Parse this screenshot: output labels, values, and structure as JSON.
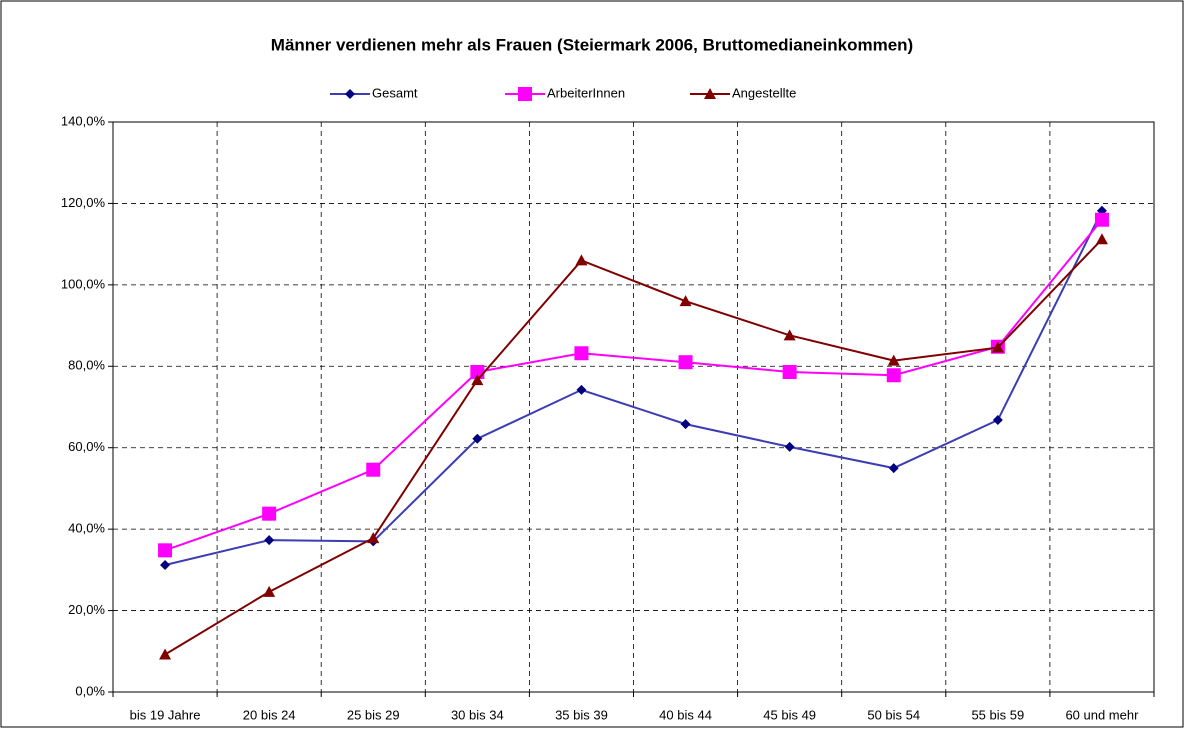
{
  "chart_data": {
    "type": "line",
    "title": "Männer verdienen mehr als Frauen (Steiermark 2006, Bruttomedianeinkommen)",
    "categories": [
      "bis 19 Jahre",
      "20 bis 24",
      "25 bis 29",
      "30 bis 34",
      "35 bis 39",
      "40 bis 44",
      "45 bis 49",
      "50 bis 54",
      "55 bis 59",
      "60 und mehr"
    ],
    "series": [
      {
        "name": "Gesamt",
        "color": "#3c3cb4",
        "marker_color": "#000080",
        "marker": "diamond",
        "values": [
          31.2,
          37.3,
          37.0,
          62.2,
          74.2,
          65.8,
          60.2,
          55.0,
          66.8,
          118.2
        ]
      },
      {
        "name": "ArbeiterInnen",
        "color": "#ff00ff",
        "marker_color": "#ff00ff",
        "marker": "square",
        "values": [
          34.8,
          43.8,
          54.6,
          78.6,
          83.2,
          81.0,
          78.6,
          77.8,
          84.8,
          116.0
        ]
      },
      {
        "name": "Angestellte",
        "color": "#800000",
        "marker_color": "#800000",
        "marker": "triangle",
        "values": [
          9.2,
          24.6,
          37.8,
          76.6,
          106.0,
          96.0,
          87.6,
          81.4,
          84.6,
          111.2
        ]
      }
    ],
    "ylim": [
      0,
      140
    ],
    "yticks": [
      {
        "value": 0,
        "label": "0,0%"
      },
      {
        "value": 20,
        "label": "20,0%"
      },
      {
        "value": 40,
        "label": "40,0%"
      },
      {
        "value": 60,
        "label": "60,0%"
      },
      {
        "value": 80,
        "label": "80,0%"
      },
      {
        "value": 100,
        "label": "100,0%"
      },
      {
        "value": 120,
        "label": "120,0%"
      },
      {
        "value": 140,
        "label": "140,0%"
      }
    ],
    "grid": true,
    "legend": "top"
  }
}
